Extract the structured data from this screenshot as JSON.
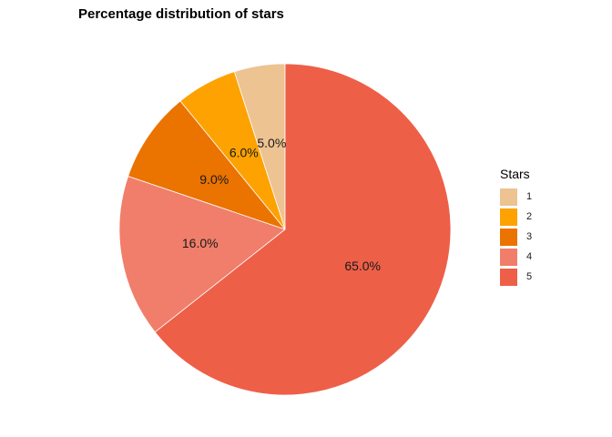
{
  "chart_data": {
    "type": "pie",
    "title": "Percentage distribution of stars",
    "legend_title": "Stars",
    "legend_position": "right",
    "categories": [
      "1",
      "2",
      "3",
      "4",
      "5"
    ],
    "labels": [
      "5.0%",
      "6.0%",
      "9.0%",
      "16.0%",
      "65.0%"
    ],
    "colors": [
      "#EDC391",
      "#FDA200",
      "#EB7300",
      "#F07E6A",
      "#EE5F48"
    ],
    "start": "12 o'clock",
    "direction": "counterclockwise"
  }
}
